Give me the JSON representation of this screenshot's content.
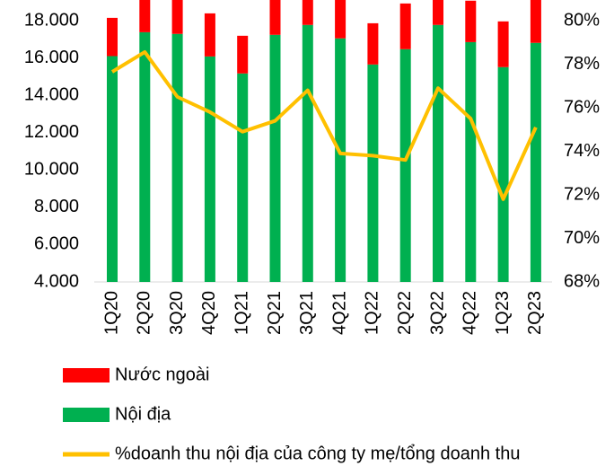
{
  "chart_data": {
    "type": "bar",
    "stacked": true,
    "categories": [
      "1Q20",
      "2Q20",
      "3Q20",
      "4Q20",
      "1Q21",
      "2Q21",
      "3Q21",
      "4Q21",
      "1Q22",
      "2Q22",
      "3Q22",
      "4Q22",
      "1Q23",
      "2Q23"
    ],
    "series": [
      {
        "name": "Nước ngoài",
        "type": "bar",
        "color": "#ff0000",
        "values": [
          2050,
          2120,
          2260,
          2310,
          2020,
          2450,
          2400,
          2780,
          2210,
          2450,
          2260,
          2220,
          2450,
          2400
        ]
      },
      {
        "name": "Nội địa",
        "type": "bar",
        "color": "#00b050",
        "values": [
          12100,
          13380,
          13290,
          12080,
          11170,
          13240,
          13770,
          13050,
          11650,
          12470,
          13770,
          12850,
          11510,
          12810
        ]
      },
      {
        "name": "%doanh thu nội địa của công ty mẹ/tổng doanh thu",
        "type": "line",
        "axis": "y2",
        "color": "#ffc000",
        "values": [
          77.65,
          78.56,
          76.5,
          75.8,
          74.9,
          75.4,
          76.8,
          73.9,
          73.8,
          73.6,
          76.9,
          75.5,
          71.8,
          75.1
        ]
      }
    ],
    "ylim": [
      4000,
      18000
    ],
    "yticks": [
      {
        "value": 4000,
        "label": "4.000"
      },
      {
        "value": 6000,
        "label": "6.000"
      },
      {
        "value": 8000,
        "label": "8.000"
      },
      {
        "value": 10000,
        "label": "10.000"
      },
      {
        "value": 12000,
        "label": "12.000"
      },
      {
        "value": 14000,
        "label": "14.000"
      },
      {
        "value": 16000,
        "label": "16.000"
      },
      {
        "value": 18000,
        "label": "18.000"
      }
    ],
    "y2lim": [
      68,
      80
    ],
    "y2ticks": [
      {
        "value": 68,
        "label": "68%"
      },
      {
        "value": 70,
        "label": "70%"
      },
      {
        "value": 72,
        "label": "72%"
      },
      {
        "value": 74,
        "label": "74%"
      },
      {
        "value": 76,
        "label": "76%"
      },
      {
        "value": 78,
        "label": "78%"
      },
      {
        "value": 80,
        "label": "80%"
      }
    ],
    "grid": false
  }
}
